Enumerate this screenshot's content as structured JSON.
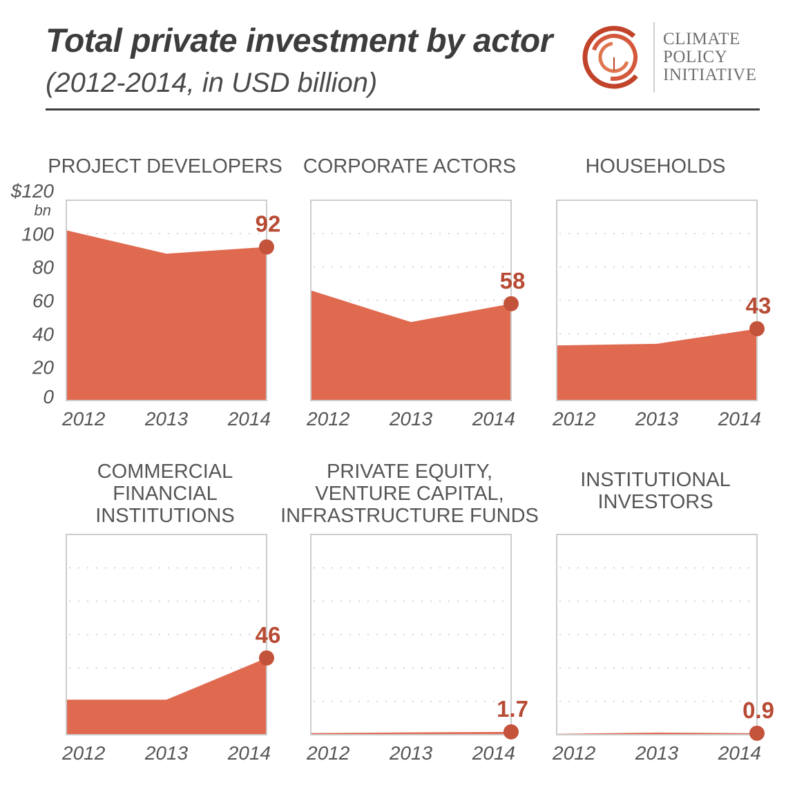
{
  "header": {
    "title": "Total private investment by actor",
    "subtitle": "(2012-2014, in USD billion)"
  },
  "logo": {
    "line1": "CLIMATE",
    "line2": "POLICY",
    "line3": "INITIATIVE",
    "icon": "swirl-icon"
  },
  "axis": {
    "ticks": [
      "$120",
      "100",
      "80",
      "60",
      "40",
      "20",
      "0"
    ],
    "unit": "bn"
  },
  "colors": {
    "fill": "#e06a50",
    "marker": "#c4533b",
    "label": "#b74a33",
    "frame": "#cccccc",
    "grid": "#c7c7c7",
    "text": "#555555"
  },
  "chart_data": [
    {
      "type": "area",
      "title": [
        "PROJECT DEVELOPERS"
      ],
      "x": [
        "2012",
        "2013",
        "2014"
      ],
      "values": [
        102,
        88,
        92
      ],
      "label": "92",
      "ylim": [
        0,
        120
      ],
      "grid": true
    },
    {
      "type": "area",
      "title": [
        "CORPORATE ACTORS"
      ],
      "x": [
        "2012",
        "2013",
        "2014"
      ],
      "values": [
        66,
        47,
        58
      ],
      "label": "58",
      "ylim": [
        0,
        120
      ],
      "grid": true
    },
    {
      "type": "area",
      "title": [
        "HOUSEHOLDS"
      ],
      "x": [
        "2012",
        "2013",
        "2014"
      ],
      "values": [
        33,
        34,
        43
      ],
      "label": "43",
      "ylim": [
        0,
        120
      ],
      "grid": true
    },
    {
      "type": "area",
      "title": [
        "COMMERCIAL",
        "FINANCIAL",
        "INSTITUTIONS"
      ],
      "x": [
        "2012",
        "2013",
        "2014"
      ],
      "values": [
        21,
        21,
        46
      ],
      "label": "46",
      "ylim": [
        0,
        120
      ],
      "grid": true
    },
    {
      "type": "area",
      "title": [
        "PRIVATE EQUITY,",
        "VENTURE CAPITAL,",
        "INFRASTRUCTURE FUNDS"
      ],
      "x": [
        "2012",
        "2013",
        "2014"
      ],
      "values": [
        1.0,
        1.4,
        1.7
      ],
      "label": "1.7",
      "ylim": [
        0,
        120
      ],
      "grid": true
    },
    {
      "type": "area",
      "title": [
        "INSTITUTIONAL",
        "INVESTORS"
      ],
      "x": [
        "2012",
        "2013",
        "2014"
      ],
      "values": [
        0.5,
        1.3,
        0.9
      ],
      "label": "0.9",
      "ylim": [
        0,
        120
      ],
      "grid": true
    }
  ]
}
